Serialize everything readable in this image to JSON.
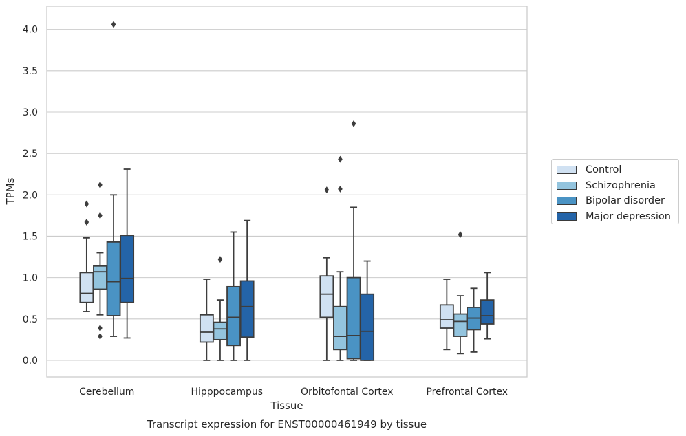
{
  "chart_data": {
    "type": "box",
    "title": "Transcript expression for ENST00000461949 by tissue",
    "xlabel": "Tissue",
    "ylabel": "TPMs",
    "ylim": [
      -0.2,
      4.28
    ],
    "yticks": [
      "0.0",
      "0.5",
      "1.0",
      "1.5",
      "2.0",
      "2.5",
      "3.0",
      "3.5",
      "4.0"
    ],
    "grid": "horizontal",
    "legend_position": "outside-right",
    "categories": [
      "Cerebellum",
      "Hipppocampus",
      "Orbitofontal Cortex",
      "Prefrontal Cortex"
    ],
    "series": [
      {
        "name": "Control",
        "color": "#d0e1f2",
        "boxes": [
          {
            "whisker_low": 0.59,
            "q1": 0.7,
            "median": 0.81,
            "q3": 1.06,
            "whisker_high": 1.48,
            "outliers": [
              1.67,
              1.89
            ]
          },
          {
            "whisker_low": 0.0,
            "q1": 0.22,
            "median": 0.34,
            "q3": 0.55,
            "whisker_high": 0.98,
            "outliers": []
          },
          {
            "whisker_low": 0.0,
            "q1": 0.52,
            "median": 0.8,
            "q3": 1.02,
            "whisker_high": 1.24,
            "outliers": [
              2.06
            ]
          },
          {
            "whisker_low": 0.13,
            "q1": 0.39,
            "median": 0.49,
            "q3": 0.67,
            "whisker_high": 0.98,
            "outliers": []
          }
        ]
      },
      {
        "name": "Schizophrenia",
        "color": "#93c4de",
        "boxes": [
          {
            "whisker_low": 0.55,
            "q1": 0.86,
            "median": 1.07,
            "q3": 1.14,
            "whisker_high": 1.3,
            "outliers": [
              1.75,
              2.12,
              0.39,
              0.29
            ]
          },
          {
            "whisker_low": 0.0,
            "q1": 0.25,
            "median": 0.38,
            "q3": 0.46,
            "whisker_high": 0.73,
            "outliers": [
              1.22
            ]
          },
          {
            "whisker_low": 0.0,
            "q1": 0.13,
            "median": 0.29,
            "q3": 0.65,
            "whisker_high": 1.07,
            "outliers": [
              2.07,
              2.43
            ]
          },
          {
            "whisker_low": 0.08,
            "q1": 0.29,
            "median": 0.47,
            "q3": 0.56,
            "whisker_high": 0.78,
            "outliers": [
              1.52
            ]
          }
        ]
      },
      {
        "name": "Bipolar disorder",
        "color": "#4a93c4",
        "boxes": [
          {
            "whisker_low": 0.29,
            "q1": 0.54,
            "median": 0.95,
            "q3": 1.43,
            "whisker_high": 2.0,
            "outliers": [
              4.06
            ]
          },
          {
            "whisker_low": 0.0,
            "q1": 0.18,
            "median": 0.52,
            "q3": 0.89,
            "whisker_high": 1.55,
            "outliers": []
          },
          {
            "whisker_low": 0.0,
            "q1": 0.02,
            "median": 0.3,
            "q3": 1.0,
            "whisker_high": 1.85,
            "outliers": [
              2.86
            ]
          },
          {
            "whisker_low": 0.1,
            "q1": 0.37,
            "median": 0.51,
            "q3": 0.64,
            "whisker_high": 0.87,
            "outliers": []
          }
        ]
      },
      {
        "name": "Major depression",
        "color": "#2464a8",
        "boxes": [
          {
            "whisker_low": 0.27,
            "q1": 0.7,
            "median": 0.99,
            "q3": 1.51,
            "whisker_high": 2.31,
            "outliers": []
          },
          {
            "whisker_low": 0.0,
            "q1": 0.28,
            "median": 0.65,
            "q3": 0.96,
            "whisker_high": 1.69,
            "outliers": []
          },
          {
            "whisker_low": 0.0,
            "q1": 0.0,
            "median": 0.35,
            "q3": 0.8,
            "whisker_high": 1.2,
            "outliers": []
          },
          {
            "whisker_low": 0.26,
            "q1": 0.44,
            "median": 0.54,
            "q3": 0.73,
            "whisker_high": 1.06,
            "outliers": []
          }
        ]
      }
    ]
  }
}
